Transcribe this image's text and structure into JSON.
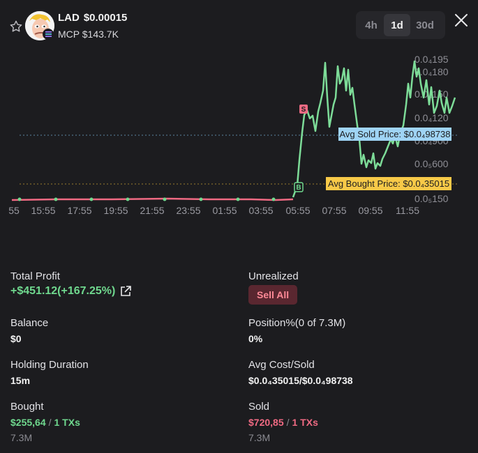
{
  "header": {
    "symbol": "LAD",
    "price": "$0.00015",
    "mcp": "MCP $143.7K",
    "tabs": [
      {
        "label": "4h",
        "active": false
      },
      {
        "label": "1d",
        "active": true
      },
      {
        "label": "30d",
        "active": false
      }
    ],
    "icons": {
      "favorite": "star-outline-icon",
      "close": "close-x-icon",
      "chain": "solana-icon"
    }
  },
  "chart_data": {
    "type": "line",
    "x_ticks": [
      "55",
      "15:55",
      "17:55",
      "19:55",
      "21:55",
      "23:55",
      "01:55",
      "03:55",
      "05:55",
      "07:55",
      "09:55",
      "11:55"
    ],
    "y_ticks": [
      "0.0₄195",
      "0.0₄180",
      "0.0₄150",
      "0.0₄120",
      "0.0₄900",
      "0.0₅600",
      "0.0₅150"
    ],
    "reference_lines": [
      {
        "label": "Avg Sold Price: $0.0₄98738",
        "color": "#9fd4f5"
      },
      {
        "label": "Avg Bought Price: $0.0₄35015",
        "color": "#f7c948"
      }
    ],
    "markers": [
      {
        "type": "buy",
        "label": "B",
        "color": "#6fd88e"
      },
      {
        "type": "sell",
        "label": "S",
        "color": "#f06a83"
      }
    ],
    "colors": {
      "pre_trade": "#f06a83",
      "post_trade": "#7ddc98"
    }
  },
  "stats": {
    "total_profit_label": "Total Profit",
    "total_profit_value": "+$451.12(+167.25%)",
    "unrealized_label": "Unrealized",
    "sell_all_label": "Sell All",
    "balance_label": "Balance",
    "balance_value": "$0",
    "position_label": "Position%(0 of 7.3M)",
    "position_value": "0%",
    "holding_label": "Holding Duration",
    "holding_value": "15m",
    "avg_cost_label": "Avg Cost/Sold",
    "avg_cost_value": "$0.0₄35015/$0.0₄98738",
    "bought_label": "Bought",
    "bought_amount": "$255,64",
    "bought_sep": "/",
    "bought_txs": "1 TXs",
    "bought_qty": "7.3M",
    "sold_label": "Sold",
    "sold_amount": "$720,85",
    "sold_sep": "/",
    "sold_txs": "1 TXs",
    "sold_qty": "7.3M"
  }
}
